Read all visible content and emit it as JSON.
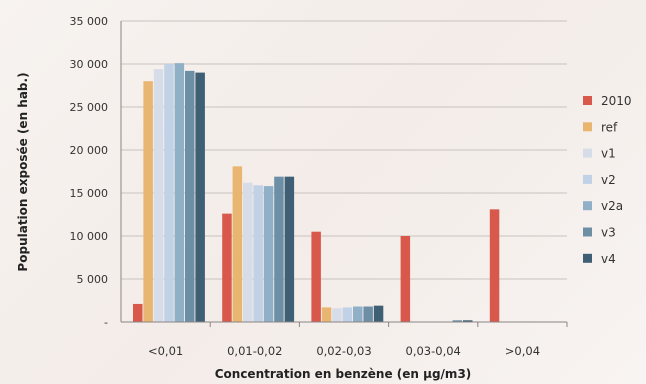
{
  "chart_data": {
    "type": "bar",
    "title": "",
    "xlabel": "Concentration en benzène (en µg/m3)",
    "ylabel": "Population exposée (en hab.)",
    "ylim": [
      0,
      35000
    ],
    "yticks": [
      0,
      5000,
      10000,
      15000,
      20000,
      25000,
      30000,
      35000
    ],
    "ytick_labels": [
      "-",
      "5 000",
      "10 000",
      "15 000",
      "20 000",
      "25 000",
      "30 000",
      "35 000"
    ],
    "categories": [
      "<0,01",
      "0,01-0,02",
      "0,02-0,03",
      "0,03-0,04",
      ">0,04"
    ],
    "grid": true,
    "legend_position": "right",
    "series": [
      {
        "name": "2010",
        "color": "#d9584c",
        "values": [
          2100,
          12600,
          10500,
          10000,
          13100
        ]
      },
      {
        "name": "ref",
        "color": "#e9b671",
        "values": [
          28000,
          18100,
          1700,
          0,
          0
        ]
      },
      {
        "name": "v1",
        "color": "#d6dde8",
        "values": [
          29400,
          16200,
          1600,
          0,
          0
        ]
      },
      {
        "name": "v2",
        "color": "#c2d2e6",
        "values": [
          30000,
          15900,
          1700,
          0,
          0
        ]
      },
      {
        "name": "v2a",
        "color": "#8fb0c6",
        "values": [
          30100,
          15800,
          1800,
          0,
          0
        ]
      },
      {
        "name": "v3",
        "color": "#6d8fa6",
        "values": [
          29200,
          16900,
          1800,
          200,
          0
        ]
      },
      {
        "name": "v4",
        "color": "#3f5f75",
        "values": [
          29000,
          16900,
          1900,
          200,
          0
        ]
      }
    ]
  }
}
